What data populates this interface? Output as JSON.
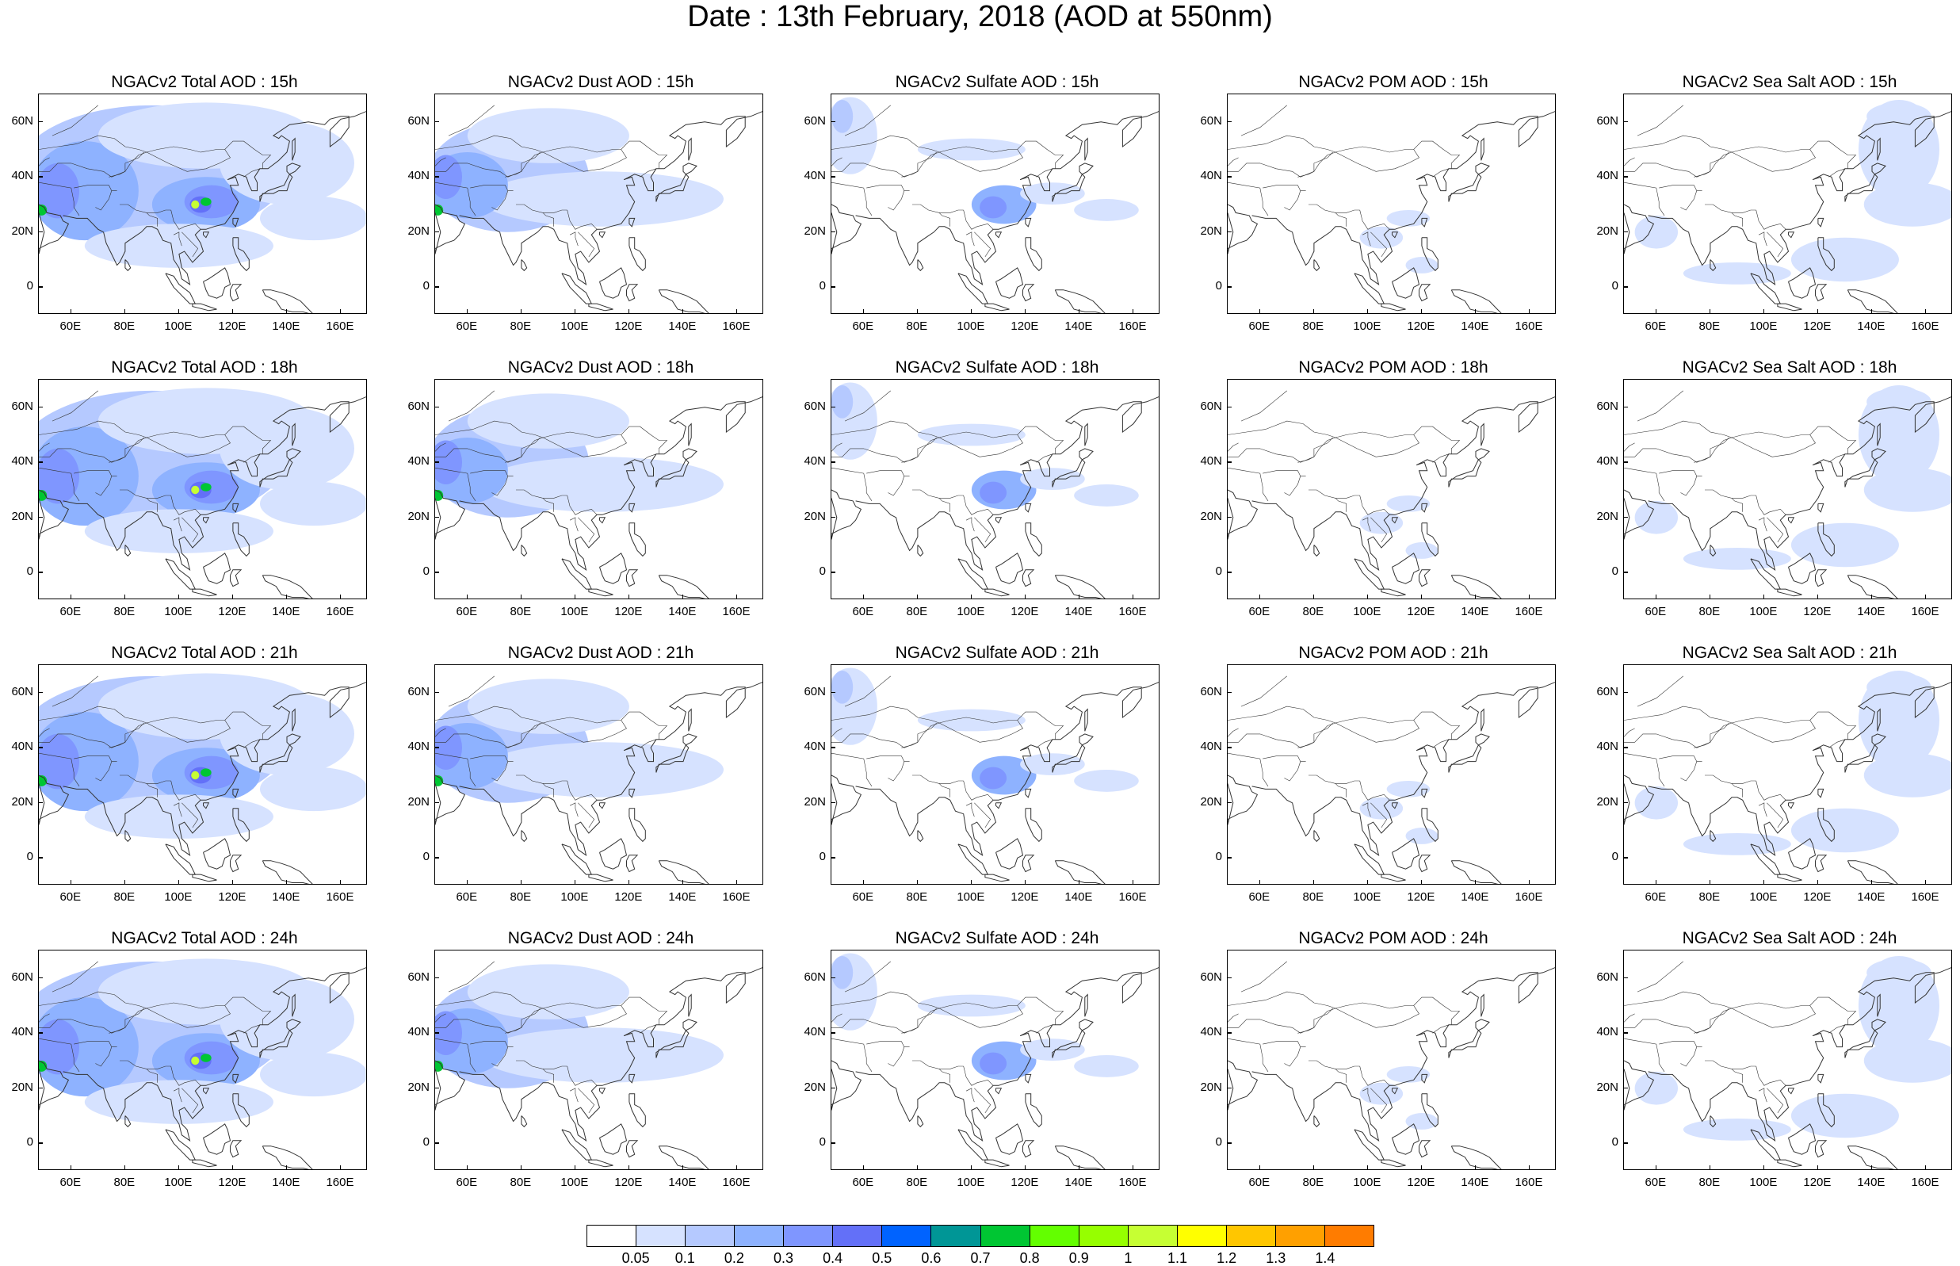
{
  "title": "Date : 13th February, 2018 (AOD at 550nm)",
  "lat_labels": [
    "60N",
    "40N",
    "20N",
    "0"
  ],
  "lat_values": [
    60,
    40,
    20,
    0
  ],
  "lon_labels": [
    "60E",
    "80E",
    "100E",
    "120E",
    "140E",
    "160E"
  ],
  "lon_values": [
    60,
    80,
    100,
    120,
    140,
    160
  ],
  "map_extent": {
    "lon_min": 48,
    "lon_max": 170,
    "lat_min": -10,
    "lat_max": 70
  },
  "species": [
    "Total",
    "Dust",
    "Sulfate",
    "POM",
    "SeaSalt"
  ],
  "hours": [
    "15h",
    "18h",
    "21h",
    "24h"
  ],
  "panels": [
    [
      "NGACv2 Total AOD : 15h",
      "NGACv2 Dust AOD : 15h",
      "NGACv2 Sulfate AOD : 15h",
      "NGACv2 POM AOD : 15h",
      "NGACv2 Sea Salt AOD : 15h"
    ],
    [
      "NGACv2 Total AOD : 18h",
      "NGACv2 Dust AOD : 18h",
      "NGACv2 Sulfate AOD : 18h",
      "NGACv2 POM AOD : 18h",
      "NGACv2 Sea Salt AOD : 18h"
    ],
    [
      "NGACv2 Total AOD : 21h",
      "NGACv2 Dust AOD : 21h",
      "NGACv2 Sulfate AOD : 21h",
      "NGACv2 POM AOD : 21h",
      "NGACv2 Sea Salt AOD : 21h"
    ],
    [
      "NGACv2 Total AOD : 24h",
      "NGACv2 Dust AOD : 24h",
      "NGACv2 Sulfate AOD : 24h",
      "NGACv2 POM AOD : 24h",
      "NGACv2 Sea Salt  AOD : 24h"
    ]
  ],
  "colorbar": {
    "labels": [
      "0.05",
      "0.1",
      "0.2",
      "0.3",
      "0.4",
      "0.5",
      "0.6",
      "0.7",
      "0.8",
      "0.9",
      "1",
      "1.1",
      "1.2",
      "1.3",
      "1.4"
    ],
    "colors": [
      "#ffffff",
      "#d6e2ff",
      "#b5c9ff",
      "#8eb2ff",
      "#7f96ff",
      "#6370f8",
      "#0063ff",
      "#009696",
      "#00c633",
      "#63ff00",
      "#96ff00",
      "#c6ff33",
      "#ffff00",
      "#ffc600",
      "#ffa000",
      "#ff7c00",
      "#ff1900"
    ]
  }
}
